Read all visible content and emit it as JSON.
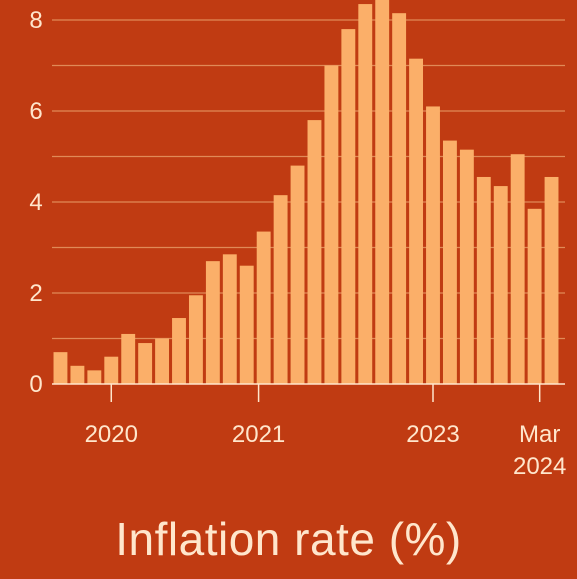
{
  "chart_data": {
    "type": "bar",
    "title": "Inflation rate (%)",
    "xlabel": "",
    "ylabel": "",
    "ylim": [
      0,
      8
    ],
    "yticks": [
      {
        "value": 0,
        "label": "0"
      },
      {
        "value": 2,
        "label": "2"
      },
      {
        "value": 4,
        "label": "4"
      },
      {
        "value": 6,
        "label": "6"
      },
      {
        "value": 8,
        "label": "8"
      }
    ],
    "xticks": [
      {
        "index": 3.5,
        "label": "2020"
      },
      {
        "index": 12.2,
        "label": "2021"
      },
      {
        "index": 22.5,
        "label": "2023"
      },
      {
        "index": 28.8,
        "label": "Mar\n2024"
      }
    ],
    "values": [
      0.7,
      0.4,
      0.3,
      0.6,
      1.1,
      0.9,
      1.0,
      1.45,
      1.95,
      2.7,
      2.85,
      2.6,
      3.35,
      4.15,
      4.8,
      5.8,
      7.0,
      7.8,
      8.35,
      8.95,
      8.15,
      7.15,
      6.1,
      5.35,
      5.15,
      4.55,
      4.35,
      5.05,
      3.85,
      4.55
    ],
    "colors": {
      "background": "#c03b12",
      "bar": "#fbaf69",
      "grid": "#e08a57",
      "text": "#ffe6cc"
    },
    "grid": true
  }
}
